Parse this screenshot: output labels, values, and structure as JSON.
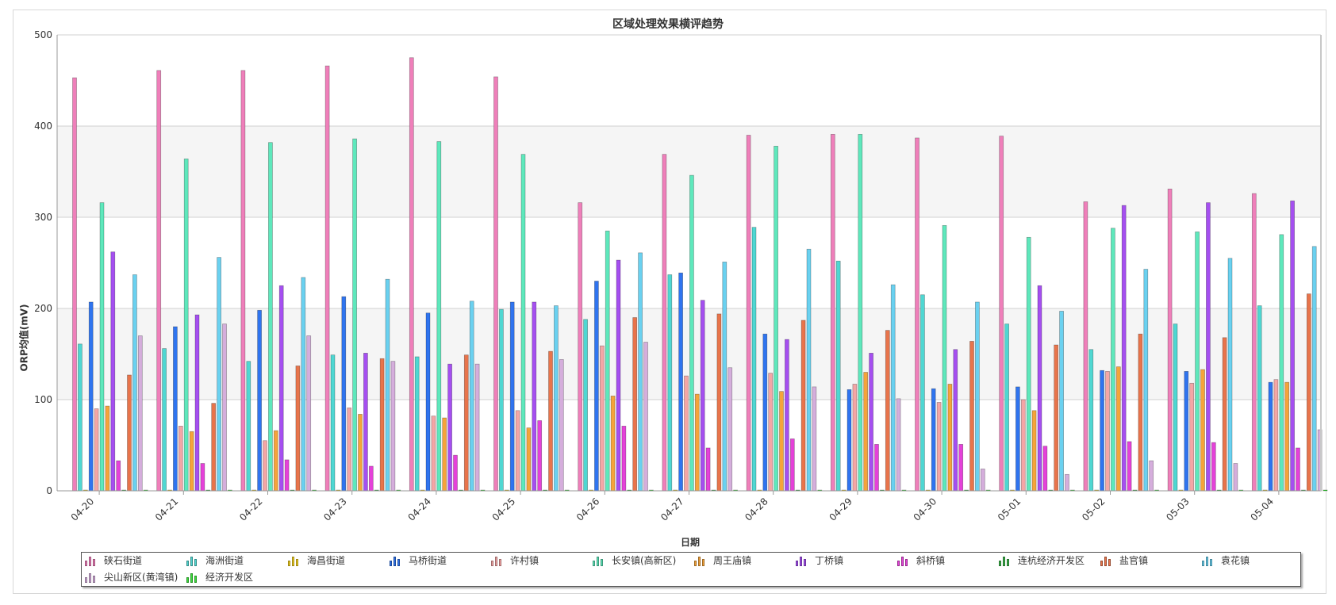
{
  "chart_data": {
    "type": "bar",
    "title": "区域处理效果横评趋势",
    "xlabel": "日期",
    "ylabel": "ORP均值(mV)",
    "ylim": [
      0,
      500
    ],
    "yticks": [
      0,
      100,
      200,
      300,
      400,
      500
    ],
    "grid": true,
    "legend_position": "bottom",
    "categories": [
      "04-20",
      "04-21",
      "04-22",
      "04-23",
      "04-24",
      "04-25",
      "04-26",
      "04-27",
      "04-28",
      "04-29",
      "04-30",
      "05-01",
      "05-02",
      "05-03",
      "05-04"
    ],
    "series": [
      {
        "name": "硖石街道",
        "color": "#ef7fba",
        "values": [
          453,
          461,
          461,
          466,
          475,
          454,
          316,
          369,
          390,
          391,
          387,
          389,
          317,
          331,
          326
        ]
      },
      {
        "name": "海洲街道",
        "color": "#4fd7d2",
        "values": [
          161,
          156,
          142,
          149,
          147,
          199,
          188,
          237,
          289,
          252,
          215,
          183,
          155,
          183,
          203
        ]
      },
      {
        "name": "海昌街道",
        "color": "#f3d223",
        "values": [
          0,
          0,
          0,
          0,
          0,
          0,
          0,
          0,
          0,
          0,
          0,
          0,
          0,
          0,
          0
        ]
      },
      {
        "name": "马桥街道",
        "color": "#2f74ef",
        "values": [
          207,
          180,
          198,
          213,
          195,
          207,
          230,
          239,
          172,
          111,
          112,
          114,
          132,
          131,
          119
        ]
      },
      {
        "name": "许村镇",
        "color": "#f4a6a6",
        "values": [
          90,
          71,
          55,
          91,
          82,
          88,
          159,
          126,
          129,
          117,
          97,
          100,
          131,
          118,
          122
        ]
      },
      {
        "name": "长安镇(高新区)",
        "color": "#5ee8bc",
        "values": [
          316,
          364,
          382,
          386,
          383,
          369,
          285,
          346,
          378,
          391,
          291,
          278,
          288,
          284,
          281
        ]
      },
      {
        "name": "周王庙镇",
        "color": "#f5a43a",
        "values": [
          93,
          65,
          66,
          84,
          80,
          69,
          104,
          106,
          109,
          130,
          117,
          88,
          136,
          133,
          119
        ]
      },
      {
        "name": "丁桥镇",
        "color": "#a54ff0",
        "values": [
          262,
          193,
          225,
          151,
          139,
          207,
          253,
          209,
          166,
          151,
          155,
          225,
          313,
          316,
          318
        ]
      },
      {
        "name": "斜桥镇",
        "color": "#e541d9",
        "values": [
          33,
          30,
          34,
          27,
          39,
          77,
          71,
          47,
          57,
          51,
          51,
          49,
          54,
          53,
          47
        ]
      },
      {
        "name": "连杭经济开发区",
        "color": "#3cb44a",
        "values": [
          0,
          0,
          0,
          0,
          0,
          0,
          0,
          0,
          0,
          0,
          0,
          0,
          0,
          0,
          0
        ]
      },
      {
        "name": "盐官镇",
        "color": "#e8744b",
        "values": [
          127,
          96,
          137,
          145,
          149,
          153,
          190,
          194,
          187,
          176,
          164,
          160,
          172,
          168,
          216
        ]
      },
      {
        "name": "袁花镇",
        "color": "#6ad1f0",
        "values": [
          237,
          256,
          234,
          232,
          208,
          203,
          261,
          251,
          265,
          226,
          207,
          197,
          243,
          255,
          268
        ]
      },
      {
        "name": "尖山新区(黄湾镇)",
        "color": "#d5aedc",
        "values": [
          170,
          183,
          170,
          142,
          139,
          144,
          163,
          135,
          114,
          101,
          24,
          18,
          33,
          30,
          67
        ]
      },
      {
        "name": "经济开发区",
        "color": "#3ce23c",
        "values": [
          0,
          0,
          0,
          0,
          0,
          0,
          0,
          0,
          0,
          0,
          0,
          0,
          0,
          0,
          0
        ]
      }
    ]
  }
}
